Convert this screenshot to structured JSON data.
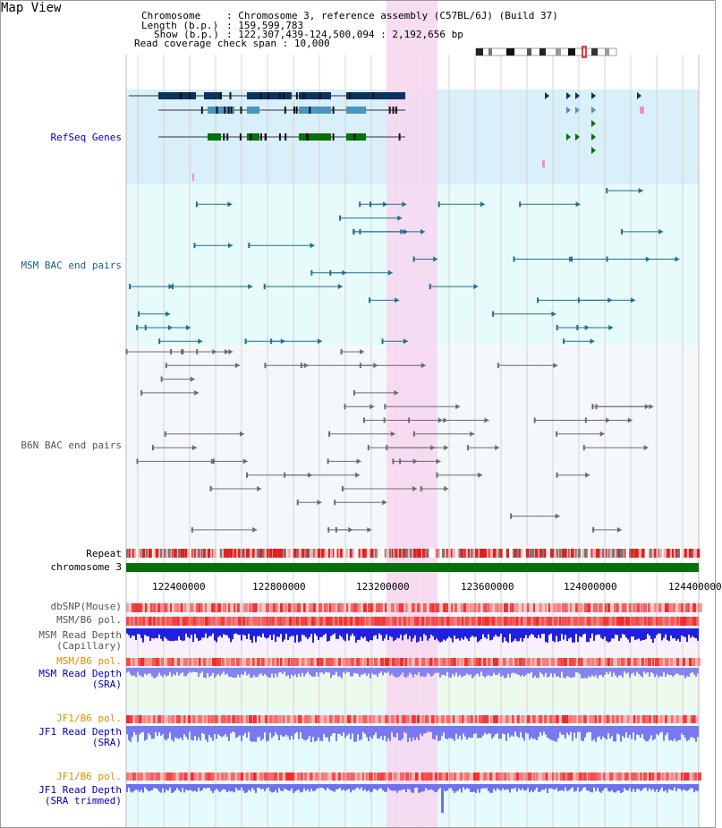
{
  "title": "Map View",
  "header": {
    "chromosome_key": "Chromosome",
    "chromosome_val": "Chromosome 3, reference assembly (C57BL/6J) (Build 37)",
    "length_key": "Length (b.p.)",
    "length_val": "159,599,783",
    "show_key": "Show (b.p.)",
    "show_val": "122,307,439-124,500,094 : 2,192,656 bp",
    "coverage_key": "Read coverage check span",
    "coverage_val": "10,000"
  },
  "tracks": {
    "refseq": "RefSeq Genes",
    "msm_bac": "MSM BAC end pairs",
    "b6n_bac": "B6N BAC end pairs",
    "repeat": "Repeat",
    "chromosome": "chromosome 3",
    "dbsnp": "dbSNP(Mouse)",
    "msm_b6_pol_1": "MSM/B6 pol.",
    "msm_depth_cap_1": "MSM Read Depth",
    "msm_depth_cap_2": "(Capillary)",
    "msm_b6_pol_2": "MSM/B6 pol.",
    "msm_depth_sra_1": "MSM Read Depth",
    "msm_depth_sra_2": "(SRA)",
    "jf1_b6_pol_1": "JF1/B6 pol.",
    "jf1_depth_sra_1": "JF1 Read Depth",
    "jf1_depth_sra_2": "(SRA)",
    "jf1_b6_pol_2": "JF1/B6 pol.",
    "jf1_depth_trim_1": "JF1 Read Depth",
    "jf1_depth_trim_2": "(SRA trimmed)"
  },
  "axis_ticks": [
    "122400000",
    "122800000",
    "123200000",
    "123600000",
    "124000000",
    "124400000"
  ],
  "colors": {
    "refseq_bg": "#d9eff9",
    "msm_bg": "#e8fbfb",
    "b6n_bg": "#f5f8fb",
    "highlight": "#f6d6f0",
    "msm_pair": "#1f6e8e",
    "b6n_pair": "#6b6b6b",
    "gene_dark": "#0d3260",
    "gene_mid": "#4a94bf",
    "gene_green": "#087008",
    "chromosome_bar": "#087008",
    "pol_red": "#f04848",
    "depth_blue": "#2020e0",
    "depth_lightblue": "#8484f0",
    "label_blue": "#0000b0",
    "label_orange": "#e09000"
  }
}
